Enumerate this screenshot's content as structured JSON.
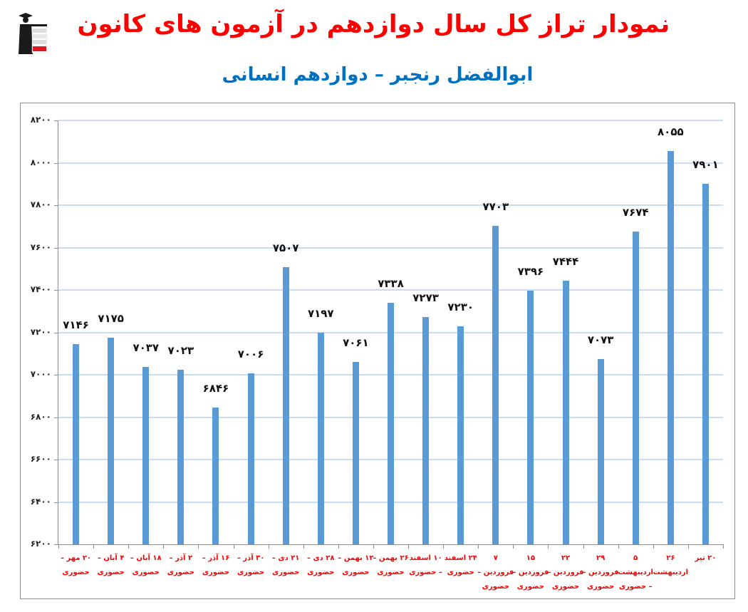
{
  "header": {
    "title": "نمودار تراز کل سال دوازدهم در آزمون های کانون",
    "subtitle": "ابوالفضل رنجبر – دوازدهم انسانی",
    "logo_text": [
      "کانون",
      "فرهنگی",
      "آموزش",
      "قلم‌چی"
    ]
  },
  "colors": {
    "title": "#ff0000",
    "subtitle": "#0070c0",
    "bar": "#5b9bd5",
    "gridline": "#c9dcf2",
    "x_labels": "#ff0000"
  },
  "chart_data": {
    "type": "bar",
    "title": "نمودار تراز کل سال دوازدهم در آزمون های کانون",
    "subtitle": "ابوالفضل رنجبر – دوازدهم انسانی",
    "xlabel": "",
    "ylabel": "",
    "ylim": [
      6200,
      8200
    ],
    "yticks": [
      6200,
      6400,
      6600,
      6800,
      7000,
      7200,
      7400,
      7600,
      7800,
      8000,
      8200
    ],
    "ytick_labels": [
      "۶۲۰۰",
      "۶۴۰۰",
      "۶۶۰۰",
      "۶۸۰۰",
      "۷۰۰۰",
      "۷۲۰۰",
      "۷۴۰۰",
      "۷۶۰۰",
      "۷۸۰۰",
      "۸۰۰۰",
      "۸۲۰۰"
    ],
    "grid": true,
    "legend": "none",
    "categories": [
      "۲۰ مهر – حضوری",
      "۴ آبان – حضوری",
      "۱۸ آبان – حضوری",
      "۲ آذر – حضوری",
      "۱۶ آذر – حضوری",
      "۳۰ آذر – حضوری",
      "۲۱ دی – حضوری",
      "۲۸ دی – حضوری",
      "۱۲ بهمن – حضوری",
      "۲۶ بهمن – حضوری",
      "۱۰ اسفند – حضوری",
      "۲۴ اسفند حضوری",
      "۷ فروردین – حضوری",
      "۱۵ فروردین – حضوری",
      "۲۲ فروردین – حضوری",
      "۲۹ فروردین – حضوری",
      "۵ اردیبهشت – حضوری",
      "۲۶ اردیبهشت",
      "۲۰ تیر"
    ],
    "values": [
      7146,
      7175,
      7037,
      7023,
      6846,
      7006,
      7507,
      7197,
      7061,
      7338,
      7273,
      7230,
      7703,
      7396,
      7444,
      7073,
      7674,
      8055,
      7901
    ],
    "value_labels": [
      "۷۱۴۶",
      "۷۱۷۵",
      "۷۰۳۷",
      "۷۰۲۳",
      "۶۸۴۶",
      "۷۰۰۶",
      "۷۵۰۷",
      "۷۱۹۷",
      "۷۰۶۱",
      "۷۳۳۸",
      "۷۲۷۳",
      "۷۲۳۰",
      "۷۷۰۳",
      "۷۳۹۶",
      "۷۴۴۴",
      "۷۰۷۳",
      "۷۶۷۴",
      "۸۰۵۵",
      "۷۹۰۱"
    ]
  }
}
